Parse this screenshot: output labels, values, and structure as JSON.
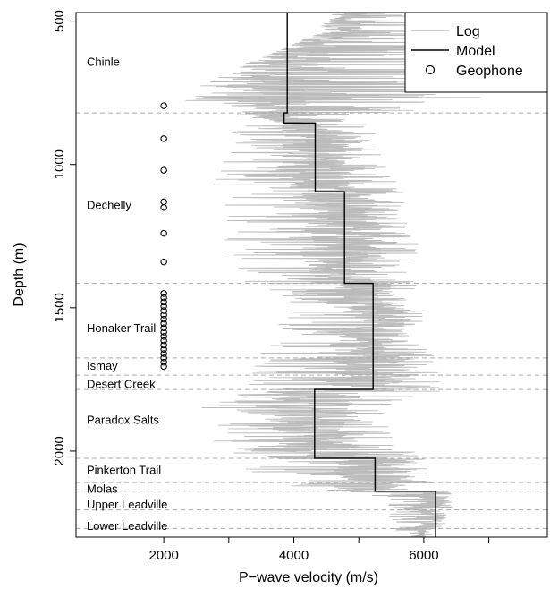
{
  "chart_data": {
    "type": "line",
    "title": "",
    "xlabel": "P−wave velocity (m/s)",
    "ylabel": "Depth (m)",
    "xlim": [
      650,
      7900
    ],
    "ylim": [
      2300,
      470
    ],
    "y_axis_inverted": true,
    "x_ticks": [
      2000,
      3000,
      4000,
      5000,
      6000,
      7000
    ],
    "x_tick_labels": [
      "2000",
      "",
      "4000",
      "",
      "6000",
      ""
    ],
    "y_ticks": [
      500,
      1000,
      1500,
      2000
    ],
    "y_tick_labels": [
      "500",
      "1000",
      "1500",
      "2000"
    ],
    "grid": false,
    "legend": {
      "placement": "top-right",
      "entries": [
        {
          "label": "Log",
          "style": "line",
          "color": "#bbbbbb"
        },
        {
          "label": "Model",
          "style": "line",
          "color": "#000000"
        },
        {
          "label": "Geophone",
          "style": "open-circle",
          "color": "#000000"
        }
      ]
    },
    "series": [
      {
        "name": "Log",
        "color": "#bbbbbb",
        "envelope": [
          {
            "depth": 470,
            "vmin": 4600,
            "vmax": 5800
          },
          {
            "depth": 550,
            "vmin": 4300,
            "vmax": 6200
          },
          {
            "depth": 620,
            "vmin": 3600,
            "vmax": 6600
          },
          {
            "depth": 700,
            "vmin": 2600,
            "vmax": 6800
          },
          {
            "depth": 780,
            "vmin": 2300,
            "vmax": 6900
          },
          {
            "depth": 840,
            "vmin": 3000,
            "vmax": 5200
          },
          {
            "depth": 900,
            "vmin": 3000,
            "vmax": 5300
          },
          {
            "depth": 1000,
            "vmin": 2900,
            "vmax": 5400
          },
          {
            "depth": 1100,
            "vmin": 2700,
            "vmax": 5700
          },
          {
            "depth": 1200,
            "vmin": 2600,
            "vmax": 5800
          },
          {
            "depth": 1300,
            "vmin": 2900,
            "vmax": 6000
          },
          {
            "depth": 1420,
            "vmin": 3200,
            "vmax": 5900
          },
          {
            "depth": 1500,
            "vmin": 3900,
            "vmax": 6000
          },
          {
            "depth": 1600,
            "vmin": 3600,
            "vmax": 6100
          },
          {
            "depth": 1700,
            "vmin": 3400,
            "vmax": 6200
          },
          {
            "depth": 1790,
            "vmin": 3200,
            "vmax": 6300
          },
          {
            "depth": 1850,
            "vmin": 2500,
            "vmax": 5600
          },
          {
            "depth": 1950,
            "vmin": 2700,
            "vmax": 5500
          },
          {
            "depth": 2020,
            "vmin": 3000,
            "vmax": 6000
          },
          {
            "depth": 2100,
            "vmin": 3200,
            "vmax": 6100
          },
          {
            "depth": 2160,
            "vmin": 5200,
            "vmax": 6500
          },
          {
            "depth": 2230,
            "vmin": 5300,
            "vmax": 6400
          },
          {
            "depth": 2300,
            "vmin": 5700,
            "vmax": 6200
          }
        ]
      },
      {
        "name": "Model",
        "color": "#000000",
        "steps": [
          {
            "depth_top": 470,
            "depth_bottom": 820,
            "velocity": 3900
          },
          {
            "depth_top": 820,
            "depth_bottom": 855,
            "velocity": 3850
          },
          {
            "depth_top": 855,
            "depth_bottom": 1095,
            "velocity": 4330
          },
          {
            "depth_top": 1095,
            "depth_bottom": 1415,
            "velocity": 4780
          },
          {
            "depth_top": 1415,
            "depth_bottom": 1785,
            "velocity": 5220
          },
          {
            "depth_top": 1785,
            "depth_bottom": 2025,
            "velocity": 4320
          },
          {
            "depth_top": 2025,
            "depth_bottom": 2140,
            "velocity": 5250
          },
          {
            "depth_top": 2140,
            "depth_bottom": 2300,
            "velocity": 6180
          }
        ]
      },
      {
        "name": "Geophone",
        "color": "#000000",
        "x_velocity": 2000,
        "depths": [
          795,
          910,
          1020,
          1130,
          1150,
          1240,
          1340,
          1450,
          1465,
          1480,
          1495,
          1510,
          1525,
          1540,
          1555,
          1570,
          1585,
          1600,
          1615,
          1630,
          1645,
          1660,
          1675,
          1690,
          1705
        ]
      }
    ],
    "formations": [
      {
        "name": "Chinle",
        "label_depth": 640
      },
      {
        "name": "Dechelly",
        "label_depth": 1140
      },
      {
        "name": "Honaker Trail",
        "label_depth": 1570
      },
      {
        "name": "Ismay",
        "label_depth": 1700
      },
      {
        "name": "Desert Creek",
        "label_depth": 1765
      },
      {
        "name": "Paradox Salts",
        "label_depth": 1890
      },
      {
        "name": "Pinkerton Trail",
        "label_depth": 2065
      },
      {
        "name": "Molas",
        "label_depth": 2130
      },
      {
        "name": "Upper Leadville",
        "label_depth": 2185
      },
      {
        "name": "Lower Leadville",
        "label_depth": 2260
      }
    ],
    "boundaries": [
      820,
      1415,
      1675,
      1735,
      1785,
      2025,
      2110,
      2140,
      2205,
      2270
    ]
  }
}
